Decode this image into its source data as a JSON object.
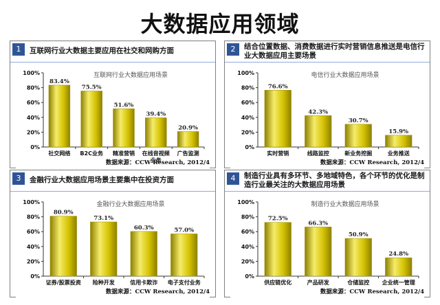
{
  "page": {
    "title": "大数据应用领域"
  },
  "panels": [
    {
      "num": "1",
      "heading": "互联网行业大数据主要应用在社交和网购方面",
      "source": "数据来源：CCW Research, 2012/4"
    },
    {
      "num": "2",
      "heading": "结合位置数据、消费数据进行实时营销信息推送是电信行业大数据应用主要场景",
      "source": "数据来源：CCW Research, 2012/4"
    },
    {
      "num": "3",
      "heading": "金融行业大数据应用场景主要集中在投资方面",
      "source": "数据来源：CCW Research, 2012/4"
    },
    {
      "num": "4",
      "heading": "制造行业具有多环节、多地域特色，各个环节的优化是制造行业最关注的大数据应用场景",
      "source": "数据来源：CCW Research, 2012/4"
    }
  ],
  "colors": {
    "bar": "#d4c200",
    "bar_highlight": "#f5ec6a",
    "bar_shadow": "#8e8000",
    "axis": "#333333",
    "header_num": "#2f5597"
  },
  "chart_data": [
    {
      "type": "bar",
      "title": "互联网行业大数据应用场景",
      "categories": [
        "社交网络",
        "B2C业务",
        "精准营销",
        "在线音视频业务",
        "广告监测"
      ],
      "category_lines": [
        [
          "社交网络"
        ],
        [
          "B2C业务"
        ],
        [
          "精准营销"
        ],
        [
          "在线音视频",
          "业务"
        ],
        [
          "广告监测"
        ]
      ],
      "values": [
        83.4,
        75.5,
        51.6,
        39.4,
        20.9
      ],
      "value_labels": [
        "83.4%",
        "75.5%",
        "51.6%",
        "39.4%",
        "20.9%"
      ],
      "yticks": [
        "0%",
        "20%",
        "40%",
        "60%",
        "80%",
        "100%"
      ],
      "ylim": [
        0,
        100
      ],
      "grid": false
    },
    {
      "type": "bar",
      "title": "电信行业大数据应用场景",
      "categories": [
        "实时营销",
        "线路监控",
        "新业务挖掘",
        "业务推送"
      ],
      "category_lines": [
        [
          "实时营销"
        ],
        [
          "线路监控"
        ],
        [
          "新业务挖掘"
        ],
        [
          "业务推送"
        ]
      ],
      "values": [
        76.6,
        42.3,
        30.7,
        15.9
      ],
      "value_labels": [
        "76.6%",
        "42.3%",
        "30.7%",
        "15.9%"
      ],
      "yticks": [
        "0%",
        "20%",
        "40%",
        "60%",
        "80%",
        "100%"
      ],
      "ylim": [
        0,
        100
      ],
      "grid": false
    },
    {
      "type": "bar",
      "title": "金融行业大数据应用场景",
      "categories": [
        "证券/股票投资",
        "险种开发",
        "信用卡欺诈",
        "电子支付业务"
      ],
      "category_lines": [
        [
          "证券/股票投资"
        ],
        [
          "险种开发"
        ],
        [
          "信用卡欺诈"
        ],
        [
          "电子支付业务"
        ]
      ],
      "values": [
        80.9,
        73.1,
        60.3,
        57.0
      ],
      "value_labels": [
        "80.9%",
        "73.1%",
        "60.3%",
        "57.0%"
      ],
      "yticks": [
        "0%",
        "20%",
        "40%",
        "60%",
        "80%",
        "100%"
      ],
      "ylim": [
        0,
        100
      ],
      "grid": false
    },
    {
      "type": "bar",
      "title": "制造行业大数据应用场景",
      "categories": [
        "供应链优化",
        "产品研发",
        "仓储监控",
        "企业统一管理"
      ],
      "category_lines": [
        [
          "供应链优化"
        ],
        [
          "产品研发"
        ],
        [
          "仓储监控"
        ],
        [
          "企业统一管理"
        ]
      ],
      "values": [
        72.5,
        66.3,
        50.9,
        24.8
      ],
      "value_labels": [
        "72.5%",
        "66.3%",
        "50.9%",
        "24.8%"
      ],
      "yticks": [
        "0%",
        "20%",
        "40%",
        "60%",
        "80%",
        "100%"
      ],
      "ylim": [
        0,
        100
      ],
      "grid": false
    }
  ]
}
